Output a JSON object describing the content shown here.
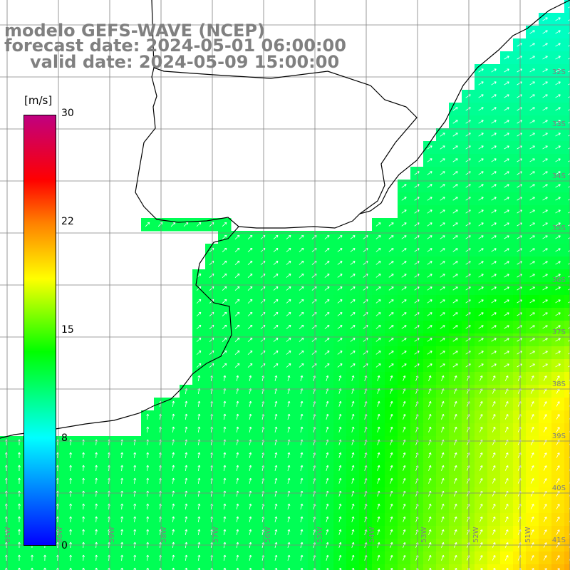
{
  "title": {
    "line1": "modelo GEFS-WAVE (NCEP)",
    "line2": "forecast date: 2024-05-01 06:00:00",
    "line3": "valid date: 2024-05-09 15:00:00"
  },
  "colorbar": {
    "unit": "[m/s]",
    "ticks": [
      "30",
      "22",
      "15",
      "8",
      "0"
    ],
    "tick_values": [
      30,
      22,
      15,
      8,
      0
    ],
    "min": 0,
    "max": 30,
    "colors": [
      "#0000ff",
      "#00ffff",
      "#00ff00",
      "#ffff00",
      "#ff8000",
      "#ff0000",
      "#c00080"
    ]
  },
  "lat_labels": [
    "32S",
    "33S",
    "34S",
    "35S",
    "36S",
    "37S",
    "38S",
    "39S",
    "40S",
    "41S"
  ],
  "lon_labels": [
    "61W",
    "60W",
    "59W",
    "58W",
    "57W",
    "56W",
    "55W",
    "54W",
    "53W",
    "52W",
    "51W"
  ],
  "colors": {
    "gridline": "#808080",
    "coast": "#000000",
    "arrow": "#ffffff",
    "label": "#808080"
  }
}
